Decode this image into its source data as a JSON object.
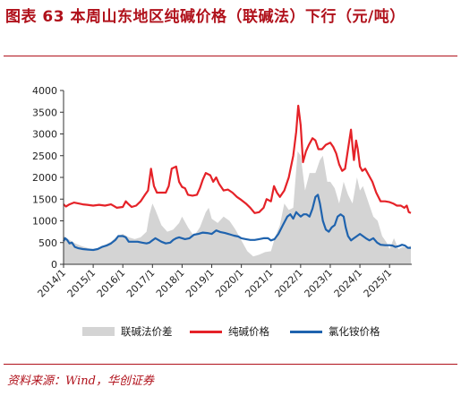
{
  "title": "图表 63   本周山东地区纯碱价格（联碱法）下行（元/吨）",
  "source": "资料来源：Wind，华创证券",
  "colors": {
    "title": "#b0111b",
    "spread": "#d4d4d4",
    "soda_ash": "#e52228",
    "ammonium_chloride": "#1f63ae"
  },
  "chart_data": {
    "type": "line",
    "xlabel": "",
    "ylabel": "",
    "ylim": [
      0,
      4000
    ],
    "y_ticks": [
      "0",
      "500",
      "1000",
      "1500",
      "2000",
      "2500",
      "3000",
      "3500",
      "4000"
    ],
    "x_range": [
      2014.0,
      2025.75
    ],
    "x_ticks": [
      "2014/1",
      "2015/1",
      "2016/1",
      "2017/1",
      "2018/1",
      "2019/1",
      "2020/1",
      "2021/1",
      "2022/1",
      "2023/1",
      "2024/1",
      "2025/1"
    ],
    "legend_position": "bottom",
    "grid": false,
    "series": [
      {
        "name": "联碱法价差",
        "type": "area",
        "color": "#d4d4d4",
        "points": [
          [
            2014.0,
            650
          ],
          [
            2014.2,
            560
          ],
          [
            2014.4,
            480
          ],
          [
            2014.6,
            420
          ],
          [
            2014.8,
            380
          ],
          [
            2015.0,
            330
          ],
          [
            2015.2,
            380
          ],
          [
            2015.4,
            450
          ],
          [
            2015.6,
            520
          ],
          [
            2015.8,
            640
          ],
          [
            2016.0,
            700
          ],
          [
            2016.2,
            620
          ],
          [
            2016.4,
            580
          ],
          [
            2016.6,
            620
          ],
          [
            2016.8,
            750
          ],
          [
            2016.9,
            1150
          ],
          [
            2017.0,
            1400
          ],
          [
            2017.1,
            1250
          ],
          [
            2017.3,
            900
          ],
          [
            2017.5,
            750
          ],
          [
            2017.7,
            800
          ],
          [
            2017.9,
            950
          ],
          [
            2018.0,
            1100
          ],
          [
            2018.2,
            850
          ],
          [
            2018.4,
            650
          ],
          [
            2018.6,
            850
          ],
          [
            2018.8,
            1200
          ],
          [
            2018.9,
            1300
          ],
          [
            2019.0,
            1050
          ],
          [
            2019.2,
            950
          ],
          [
            2019.4,
            1100
          ],
          [
            2019.6,
            1000
          ],
          [
            2019.8,
            800
          ],
          [
            2020.0,
            550
          ],
          [
            2020.2,
            300
          ],
          [
            2020.4,
            180
          ],
          [
            2020.6,
            220
          ],
          [
            2020.8,
            280
          ],
          [
            2021.0,
            300
          ],
          [
            2021.15,
            650
          ],
          [
            2021.3,
            900
          ],
          [
            2021.45,
            1400
          ],
          [
            2021.6,
            1250
          ],
          [
            2021.75,
            1300
          ],
          [
            2021.9,
            2600
          ],
          [
            2022.0,
            2500
          ],
          [
            2022.15,
            1700
          ],
          [
            2022.3,
            2100
          ],
          [
            2022.5,
            2100
          ],
          [
            2022.65,
            2400
          ],
          [
            2022.75,
            2500
          ],
          [
            2022.9,
            1900
          ],
          [
            2023.0,
            1900
          ],
          [
            2023.15,
            1750
          ],
          [
            2023.3,
            1400
          ],
          [
            2023.45,
            1900
          ],
          [
            2023.6,
            1600
          ],
          [
            2023.75,
            1400
          ],
          [
            2023.9,
            2000
          ],
          [
            2024.0,
            1700
          ],
          [
            2024.1,
            1800
          ],
          [
            2024.3,
            1400
          ],
          [
            2024.45,
            1100
          ],
          [
            2024.6,
            1000
          ],
          [
            2024.75,
            650
          ],
          [
            2024.9,
            500
          ],
          [
            2025.0,
            350
          ],
          [
            2025.15,
            600
          ],
          [
            2025.3,
            350
          ],
          [
            2025.45,
            400
          ],
          [
            2025.6,
            380
          ],
          [
            2025.72,
            430
          ]
        ]
      },
      {
        "name": "纯碱价格",
        "type": "line",
        "color": "#e52228",
        "points": [
          [
            2014.0,
            1380
          ],
          [
            2014.08,
            1330
          ],
          [
            2014.2,
            1380
          ],
          [
            2014.35,
            1420
          ],
          [
            2014.5,
            1400
          ],
          [
            2014.65,
            1380
          ],
          [
            2014.8,
            1370
          ],
          [
            2015.0,
            1350
          ],
          [
            2015.2,
            1370
          ],
          [
            2015.4,
            1350
          ],
          [
            2015.6,
            1380
          ],
          [
            2015.8,
            1300
          ],
          [
            2016.0,
            1320
          ],
          [
            2016.1,
            1450
          ],
          [
            2016.2,
            1380
          ],
          [
            2016.3,
            1320
          ],
          [
            2016.45,
            1350
          ],
          [
            2016.6,
            1450
          ],
          [
            2016.75,
            1600
          ],
          [
            2016.85,
            1700
          ],
          [
            2016.95,
            2200
          ],
          [
            2017.05,
            1800
          ],
          [
            2017.15,
            1650
          ],
          [
            2017.3,
            1650
          ],
          [
            2017.45,
            1650
          ],
          [
            2017.55,
            1800
          ],
          [
            2017.65,
            2200
          ],
          [
            2017.8,
            2250
          ],
          [
            2017.9,
            1900
          ],
          [
            2018.0,
            1780
          ],
          [
            2018.1,
            1750
          ],
          [
            2018.2,
            1600
          ],
          [
            2018.35,
            1580
          ],
          [
            2018.5,
            1600
          ],
          [
            2018.6,
            1750
          ],
          [
            2018.7,
            1950
          ],
          [
            2018.8,
            2100
          ],
          [
            2018.95,
            2050
          ],
          [
            2019.05,
            1900
          ],
          [
            2019.15,
            2000
          ],
          [
            2019.25,
            1850
          ],
          [
            2019.4,
            1700
          ],
          [
            2019.55,
            1720
          ],
          [
            2019.7,
            1650
          ],
          [
            2019.85,
            1550
          ],
          [
            2020.0,
            1480
          ],
          [
            2020.15,
            1400
          ],
          [
            2020.3,
            1300
          ],
          [
            2020.45,
            1180
          ],
          [
            2020.6,
            1200
          ],
          [
            2020.75,
            1300
          ],
          [
            2020.85,
            1500
          ],
          [
            2021.0,
            1450
          ],
          [
            2021.1,
            1800
          ],
          [
            2021.2,
            1650
          ],
          [
            2021.3,
            1550
          ],
          [
            2021.45,
            1700
          ],
          [
            2021.6,
            2000
          ],
          [
            2021.75,
            2500
          ],
          [
            2021.85,
            3050
          ],
          [
            2021.92,
            3650
          ],
          [
            2022.0,
            3200
          ],
          [
            2022.08,
            2350
          ],
          [
            2022.18,
            2600
          ],
          [
            2022.28,
            2750
          ],
          [
            2022.4,
            2900
          ],
          [
            2022.5,
            2850
          ],
          [
            2022.6,
            2650
          ],
          [
            2022.72,
            2650
          ],
          [
            2022.85,
            2750
          ],
          [
            2023.0,
            2800
          ],
          [
            2023.1,
            2700
          ],
          [
            2023.2,
            2550
          ],
          [
            2023.3,
            2300
          ],
          [
            2023.4,
            2150
          ],
          [
            2023.5,
            2200
          ],
          [
            2023.6,
            2650
          ],
          [
            2023.7,
            3100
          ],
          [
            2023.76,
            2650
          ],
          [
            2023.8,
            2400
          ],
          [
            2023.87,
            2850
          ],
          [
            2023.93,
            2650
          ],
          [
            2024.0,
            2250
          ],
          [
            2024.08,
            2150
          ],
          [
            2024.18,
            2200
          ],
          [
            2024.3,
            2050
          ],
          [
            2024.42,
            1900
          ],
          [
            2024.55,
            1650
          ],
          [
            2024.7,
            1450
          ],
          [
            2024.85,
            1450
          ],
          [
            2025.0,
            1430
          ],
          [
            2025.12,
            1400
          ],
          [
            2025.25,
            1350
          ],
          [
            2025.38,
            1350
          ],
          [
            2025.5,
            1300
          ],
          [
            2025.58,
            1350
          ],
          [
            2025.65,
            1200
          ],
          [
            2025.72,
            1180
          ]
        ]
      },
      {
        "name": "氯化铵价格",
        "type": "line",
        "color": "#1f63ae",
        "points": [
          [
            2014.0,
            530
          ],
          [
            2014.05,
            600
          ],
          [
            2014.12,
            560
          ],
          [
            2014.2,
            480
          ],
          [
            2014.28,
            500
          ],
          [
            2014.38,
            400
          ],
          [
            2014.5,
            370
          ],
          [
            2014.65,
            350
          ],
          [
            2014.8,
            340
          ],
          [
            2015.0,
            330
          ],
          [
            2015.15,
            350
          ],
          [
            2015.3,
            400
          ],
          [
            2015.45,
            430
          ],
          [
            2015.6,
            480
          ],
          [
            2015.75,
            560
          ],
          [
            2015.85,
            650
          ],
          [
            2016.0,
            650
          ],
          [
            2016.1,
            620
          ],
          [
            2016.2,
            520
          ],
          [
            2016.35,
            520
          ],
          [
            2016.5,
            520
          ],
          [
            2016.65,
            500
          ],
          [
            2016.8,
            480
          ],
          [
            2016.9,
            500
          ],
          [
            2017.0,
            550
          ],
          [
            2017.1,
            600
          ],
          [
            2017.2,
            560
          ],
          [
            2017.3,
            520
          ],
          [
            2017.45,
            480
          ],
          [
            2017.6,
            500
          ],
          [
            2017.7,
            560
          ],
          [
            2017.8,
            600
          ],
          [
            2017.9,
            620
          ],
          [
            2018.0,
            600
          ],
          [
            2018.1,
            580
          ],
          [
            2018.25,
            600
          ],
          [
            2018.4,
            680
          ],
          [
            2018.55,
            700
          ],
          [
            2018.7,
            730
          ],
          [
            2018.85,
            720
          ],
          [
            2019.0,
            700
          ],
          [
            2019.15,
            780
          ],
          [
            2019.3,
            740
          ],
          [
            2019.45,
            720
          ],
          [
            2019.6,
            690
          ],
          [
            2019.75,
            660
          ],
          [
            2019.9,
            640
          ],
          [
            2020.0,
            600
          ],
          [
            2020.15,
            580
          ],
          [
            2020.3,
            560
          ],
          [
            2020.45,
            560
          ],
          [
            2020.6,
            580
          ],
          [
            2020.75,
            600
          ],
          [
            2020.9,
            600
          ],
          [
            2021.0,
            550
          ],
          [
            2021.12,
            580
          ],
          [
            2021.25,
            700
          ],
          [
            2021.4,
            900
          ],
          [
            2021.55,
            1100
          ],
          [
            2021.65,
            1150
          ],
          [
            2021.75,
            1050
          ],
          [
            2021.85,
            1200
          ],
          [
            2021.92,
            1150
          ],
          [
            2022.0,
            1100
          ],
          [
            2022.1,
            1150
          ],
          [
            2022.2,
            1150
          ],
          [
            2022.3,
            1100
          ],
          [
            2022.4,
            1280
          ],
          [
            2022.5,
            1550
          ],
          [
            2022.58,
            1600
          ],
          [
            2022.65,
            1400
          ],
          [
            2022.75,
            1000
          ],
          [
            2022.85,
            800
          ],
          [
            2022.95,
            750
          ],
          [
            2023.05,
            850
          ],
          [
            2023.15,
            900
          ],
          [
            2023.25,
            1100
          ],
          [
            2023.35,
            1150
          ],
          [
            2023.45,
            1100
          ],
          [
            2023.52,
            850
          ],
          [
            2023.6,
            650
          ],
          [
            2023.7,
            550
          ],
          [
            2023.8,
            600
          ],
          [
            2023.9,
            650
          ],
          [
            2024.0,
            700
          ],
          [
            2024.1,
            650
          ],
          [
            2024.2,
            600
          ],
          [
            2024.32,
            550
          ],
          [
            2024.45,
            600
          ],
          [
            2024.58,
            500
          ],
          [
            2024.7,
            450
          ],
          [
            2024.85,
            440
          ],
          [
            2025.0,
            440
          ],
          [
            2025.1,
            430
          ],
          [
            2025.2,
            400
          ],
          [
            2025.32,
            420
          ],
          [
            2025.42,
            450
          ],
          [
            2025.52,
            430
          ],
          [
            2025.62,
            380
          ],
          [
            2025.72,
            380
          ]
        ]
      }
    ]
  }
}
